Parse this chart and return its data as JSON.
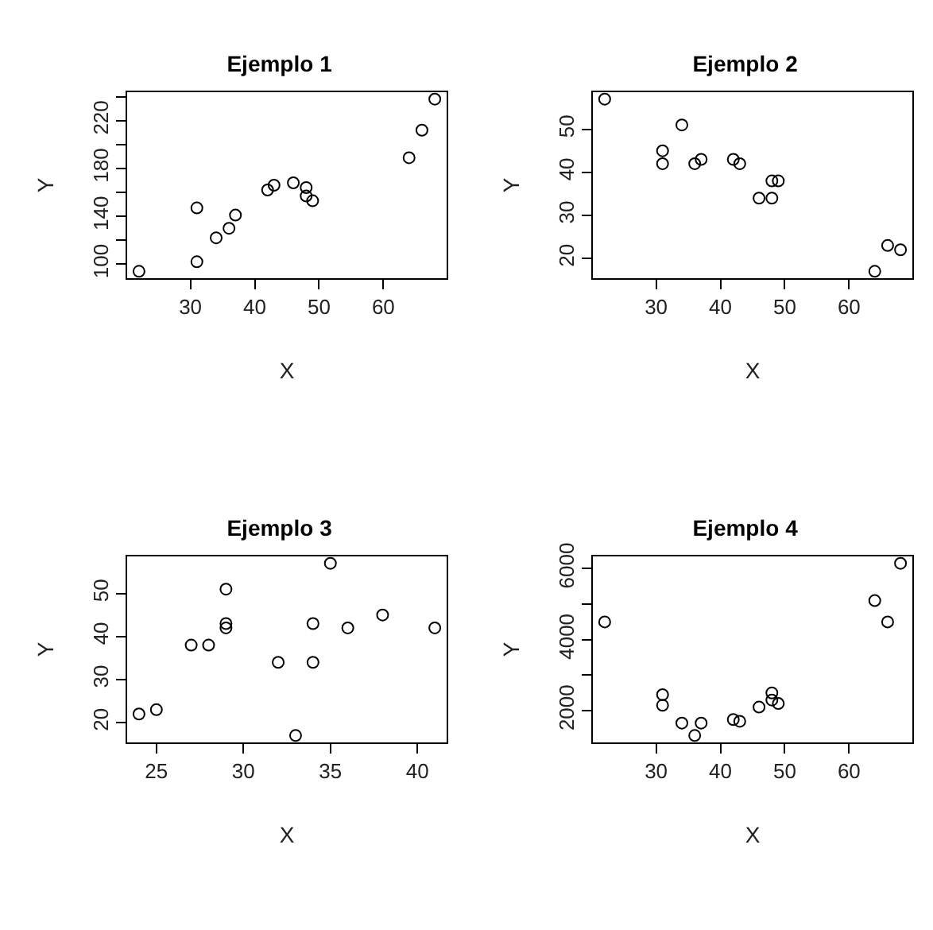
{
  "chart_data": [
    {
      "type": "scatter",
      "title": "Ejemplo 1",
      "xlabel": "X",
      "ylabel": "Y",
      "marker": "circle",
      "color": "#000000",
      "grid": false,
      "x": [
        22,
        31,
        31,
        34,
        36,
        37,
        42,
        43,
        46,
        48,
        48,
        49,
        64,
        66,
        68
      ],
      "values": [
        94,
        102,
        147,
        122,
        130,
        141,
        162,
        166,
        168,
        164,
        157,
        153,
        189,
        212,
        238
      ],
      "xlim": [
        20.16,
        69.84
      ],
      "ylim": [
        88.24,
        243.76
      ],
      "xticks": [
        30,
        40,
        50,
        60
      ],
      "yticks": [
        100,
        {
          "value": 120,
          "label": null
        },
        140,
        {
          "value": 160,
          "label": null
        },
        180,
        {
          "value": 200,
          "label": null
        },
        220,
        {
          "value": 240,
          "label": null
        }
      ]
    },
    {
      "type": "scatter",
      "title": "Ejemplo 2",
      "xlabel": "X",
      "ylabel": "Y",
      "marker": "circle",
      "color": "#000000",
      "grid": false,
      "x": [
        22,
        31,
        31,
        34,
        36,
        37,
        42,
        43,
        46,
        48,
        48,
        49,
        64,
        66,
        68
      ],
      "values": [
        57,
        45,
        42,
        51,
        42,
        43,
        43,
        42,
        34,
        38,
        34,
        38,
        17,
        23,
        22
      ],
      "xlim": [
        20.16,
        69.84
      ],
      "ylim": [
        15.4,
        58.6
      ],
      "xticks": [
        30,
        40,
        50,
        60
      ],
      "yticks": [
        20,
        30,
        40,
        50
      ]
    },
    {
      "type": "scatter",
      "title": "Ejemplo 3",
      "xlabel": "X",
      "ylabel": "Y",
      "marker": "circle",
      "color": "#000000",
      "grid": false,
      "x": [
        24,
        25,
        27,
        28,
        29,
        29,
        29,
        32,
        33,
        34,
        34,
        35,
        36,
        38,
        41
      ],
      "values": [
        22,
        23,
        38,
        38,
        51,
        43,
        42,
        34,
        17,
        43,
        34,
        57,
        42,
        45,
        42
      ],
      "xlim": [
        23.32,
        41.68
      ],
      "ylim": [
        15.4,
        58.6
      ],
      "xticks": [
        25,
        30,
        35,
        40
      ],
      "yticks": [
        20,
        30,
        40,
        50
      ]
    },
    {
      "type": "scatter",
      "title": "Ejemplo 4",
      "xlabel": "X",
      "ylabel": "Y",
      "marker": "circle",
      "color": "#000000",
      "grid": false,
      "x": [
        22,
        31,
        31,
        34,
        36,
        37,
        42,
        43,
        46,
        48,
        48,
        49,
        64,
        66,
        68
      ],
      "values": [
        4500,
        2450,
        2150,
        1650,
        1300,
        1650,
        1750,
        1700,
        2100,
        2500,
        2300,
        2200,
        5100,
        4500,
        6150
      ],
      "xlim": [
        20.16,
        69.84
      ],
      "ylim": [
        1106,
        6344
      ],
      "xticks": [
        30,
        40,
        50,
        60
      ],
      "yticks": [
        2000,
        {
          "value": 3000,
          "label": null
        },
        4000,
        {
          "value": 5000,
          "label": null
        },
        6000
      ]
    }
  ]
}
